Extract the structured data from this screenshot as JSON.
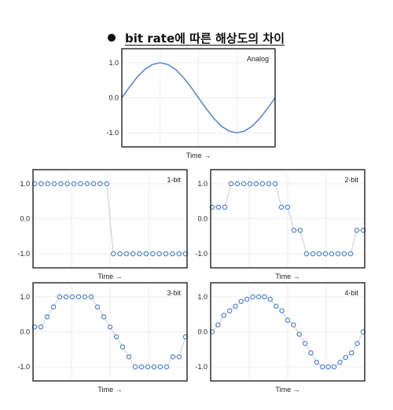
{
  "header": {
    "title": "bit rate에 따른 해상도의 차이"
  },
  "colors": {
    "line": "#5b8bc9",
    "marker": "#5b8bc9",
    "connector": "#cccccc",
    "grid": "#eeeeee",
    "frame": "#111111"
  },
  "chart_data": [
    {
      "type": "line",
      "annotation": "Analog",
      "xlabel": "Time →",
      "ylabel": "",
      "yticks": [
        "1.0",
        "0.0",
        "-1.0"
      ],
      "ylim": [
        -1.4,
        1.4
      ],
      "xlim": [
        0,
        2
      ],
      "grid": true,
      "series": [
        {
          "x": [
            0,
            0.1,
            0.2,
            0.3,
            0.4,
            0.5,
            0.6,
            0.7,
            0.8,
            0.9,
            1.0,
            1.1,
            1.2,
            1.3,
            1.4,
            1.5,
            1.6,
            1.7,
            1.8,
            1.9,
            2.0
          ],
          "y": [
            0,
            0.31,
            0.59,
            0.81,
            0.95,
            1.0,
            0.95,
            0.81,
            0.59,
            0.31,
            0,
            -0.31,
            -0.59,
            -0.81,
            -0.95,
            -1.0,
            -0.95,
            -0.81,
            -0.59,
            -0.31,
            0
          ]
        }
      ]
    },
    {
      "type": "scatter",
      "annotation": "1-bit",
      "xlabel": "Time →",
      "ylabel": "",
      "yticks": [
        "1.0",
        "0.0",
        "-1.0"
      ],
      "ylim": [
        -1.4,
        1.4
      ],
      "grid": true,
      "series": [
        {
          "y": [
            1,
            1,
            1,
            1,
            1,
            1,
            1,
            1,
            1,
            1,
            1,
            1,
            -1,
            -1,
            -1,
            -1,
            -1,
            -1,
            -1,
            -1,
            -1,
            -1,
            -1,
            -1
          ]
        }
      ]
    },
    {
      "type": "scatter",
      "annotation": "2-bit",
      "xlabel": "Time →",
      "ylabel": "",
      "yticks": [
        "1.0",
        "0.0",
        "-1.0"
      ],
      "ylim": [
        -1.4,
        1.4
      ],
      "grid": true,
      "series": [
        {
          "y": [
            0.33,
            0.33,
            0.33,
            1,
            1,
            1,
            1,
            1,
            1,
            1,
            1,
            0.33,
            0.33,
            -0.33,
            -0.33,
            -1,
            -1,
            -1,
            -1,
            -1,
            -1,
            -1,
            -1,
            -0.33,
            -0.33
          ]
        }
      ]
    },
    {
      "type": "scatter",
      "annotation": "3-bit",
      "xlabel": "Time →",
      "ylabel": "",
      "yticks": [
        "1.0",
        "0.0",
        "-1.0"
      ],
      "ylim": [
        -1.4,
        1.4
      ],
      "grid": true,
      "series": [
        {
          "y": [
            0.14,
            0.14,
            0.43,
            0.71,
            1,
            1,
            1,
            1,
            1,
            1,
            0.71,
            0.43,
            0.14,
            -0.14,
            -0.43,
            -0.71,
            -1,
            -1,
            -1,
            -1,
            -1,
            -1,
            -0.71,
            -0.71,
            -0.14
          ]
        }
      ]
    },
    {
      "type": "scatter",
      "annotation": "4-bit",
      "xlabel": "Time →",
      "ylabel": "",
      "yticks": [
        "1.0",
        "0.0",
        "-1.0"
      ],
      "ylim": [
        -1.4,
        1.4
      ],
      "grid": true,
      "series": [
        {
          "y": [
            0,
            0.2,
            0.47,
            0.6,
            0.73,
            0.87,
            0.93,
            1,
            1,
            1,
            0.93,
            0.73,
            0.6,
            0.33,
            0.2,
            -0.07,
            -0.33,
            -0.6,
            -0.87,
            -1,
            -1,
            -1,
            -0.87,
            -0.73,
            -0.6,
            -0.33,
            0
          ]
        }
      ]
    }
  ]
}
